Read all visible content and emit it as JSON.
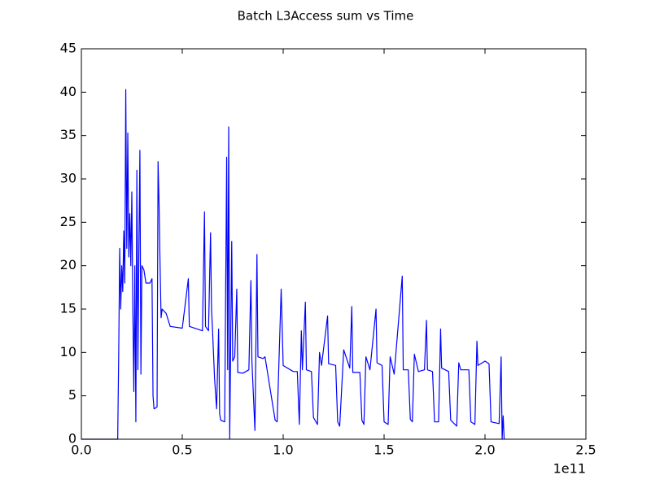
{
  "chart_data": {
    "type": "line",
    "title": "Batch L3Access sum vs Time",
    "x_offset_label": "1e11",
    "xlim": [
      0,
      2.5
    ],
    "xticks": [
      {
        "value": 0,
        "label": "0.0"
      },
      0.5,
      {
        "value": 1,
        "label": "1.0"
      },
      1.5,
      {
        "value": 2,
        "label": "2.0"
      },
      2.5
    ],
    "ylim": [
      0,
      45
    ],
    "yticks": [
      0,
      5,
      10,
      15,
      20,
      25,
      30,
      35,
      40,
      45
    ],
    "grid": false,
    "x": [
      0,
      0.18,
      0.185,
      0.19,
      0.195,
      0.2,
      0.205,
      0.21,
      0.215,
      0.22,
      0.225,
      0.23,
      0.235,
      0.24,
      0.245,
      0.25,
      0.255,
      0.26,
      0.265,
      0.27,
      0.275,
      0.28,
      0.285,
      0.29,
      0.295,
      0.3,
      0.31,
      0.32,
      0.34,
      0.35,
      0.355,
      0.36,
      0.375,
      0.38,
      0.385,
      0.39,
      0.395,
      0.4,
      0.42,
      0.44,
      0.5,
      0.53,
      0.535,
      0.6,
      0.61,
      0.615,
      0.63,
      0.64,
      0.645,
      0.65,
      0.66,
      0.67,
      0.68,
      0.685,
      0.69,
      0.71,
      0.72,
      0.725,
      0.73,
      0.735,
      0.745,
      0.75,
      0.76,
      0.77,
      0.775,
      0.8,
      0.83,
      0.84,
      0.845,
      0.86,
      0.87,
      0.875,
      0.9,
      0.91,
      0.96,
      0.97,
      0.99,
      1.0,
      1.05,
      1.07,
      1.08,
      1.09,
      1.095,
      1.11,
      1.115,
      1.14,
      1.15,
      1.17,
      1.18,
      1.19,
      1.22,
      1.225,
      1.26,
      1.27,
      1.28,
      1.3,
      1.33,
      1.34,
      1.345,
      1.38,
      1.39,
      1.4,
      1.41,
      1.43,
      1.46,
      1.465,
      1.49,
      1.5,
      1.52,
      1.53,
      1.55,
      1.59,
      1.595,
      1.62,
      1.63,
      1.64,
      1.65,
      1.67,
      1.7,
      1.71,
      1.715,
      1.74,
      1.75,
      1.77,
      1.78,
      1.785,
      1.82,
      1.83,
      1.86,
      1.87,
      1.88,
      1.92,
      1.93,
      1.95,
      1.96,
      1.965,
      2.0,
      2.02,
      2.03,
      2.07,
      2.08,
      2.085,
      2.09,
      2.095
    ],
    "series": [
      {
        "color": "#0000ff",
        "values": [
          0,
          0,
          10,
          22,
          15,
          20,
          17,
          24,
          18,
          40.3,
          22,
          35.3,
          21,
          26,
          20,
          28.5,
          15,
          5.5,
          20,
          2,
          31,
          8,
          22,
          33.3,
          7.5,
          20,
          19.5,
          18,
          18,
          18.5,
          5,
          3.5,
          3.7,
          32,
          27,
          20,
          14,
          15,
          14.5,
          13,
          12.8,
          18.5,
          13,
          12.5,
          26.2,
          13,
          12.5,
          23.8,
          15,
          12.5,
          7,
          3.5,
          12.7,
          3,
          2.2,
          2,
          32.5,
          8,
          36,
          0,
          22.8,
          9,
          9.5,
          17.3,
          7.7,
          7.6,
          8,
          18.3,
          9,
          1,
          21.3,
          9.5,
          9.3,
          9.5,
          2.2,
          2,
          17.3,
          8.5,
          7.8,
          7.8,
          1.7,
          12.5,
          8,
          15.8,
          8,
          7.8,
          2.5,
          1.7,
          10,
          8.5,
          14.2,
          8.7,
          8.5,
          2,
          1.5,
          10.3,
          8.2,
          15.3,
          7.7,
          7.7,
          2.2,
          1.7,
          9.5,
          8,
          15,
          8.8,
          8.5,
          2,
          1.7,
          9.5,
          7.5,
          18.8,
          8,
          8,
          2.3,
          2,
          9.8,
          7.8,
          8,
          13.7,
          8,
          7.8,
          2,
          2,
          12.7,
          8.2,
          7.8,
          2.2,
          1.5,
          8.8,
          8,
          8,
          2,
          1.7,
          11.3,
          8.5,
          9,
          8.7,
          2,
          1.8,
          9.5,
          0,
          2.7,
          0
        ]
      }
    ]
  }
}
